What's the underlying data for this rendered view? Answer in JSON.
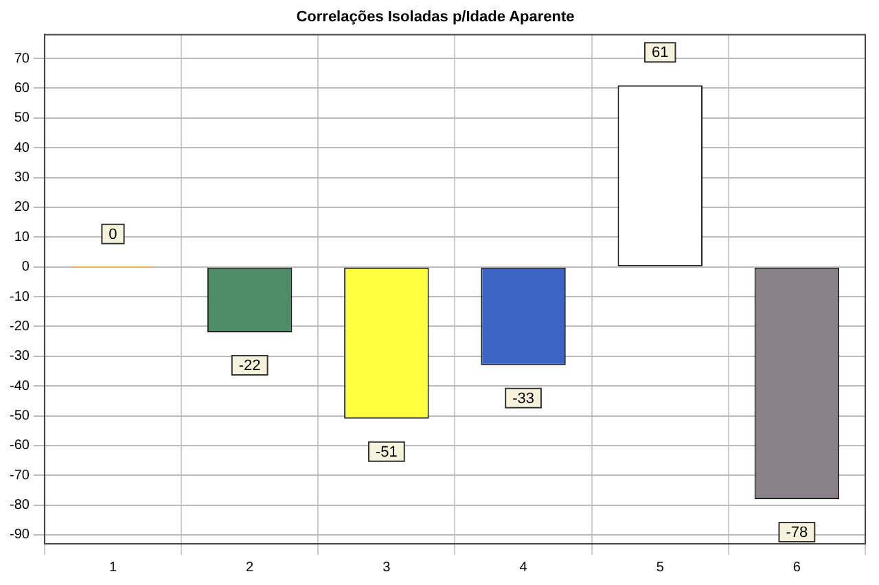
{
  "chart_data": {
    "type": "bar",
    "title": "Correlações Isoladas p/Idade Aparente",
    "categories": [
      "1",
      "2",
      "3",
      "4",
      "5",
      "6"
    ],
    "values": [
      0,
      -22,
      -51,
      -33,
      61,
      -78
    ],
    "colors": [
      "#f0a868",
      "#4e8c68",
      "#ffff40",
      "#3c64c4",
      "#ffffff",
      "#8a8088"
    ],
    "ylim": [
      -93,
      78
    ],
    "yticks": [
      -90,
      -80,
      -70,
      -60,
      -50,
      -40,
      -30,
      -20,
      -10,
      0,
      10,
      20,
      30,
      40,
      50,
      60,
      70
    ],
    "grid": true,
    "data_labels": true,
    "legend": false
  }
}
